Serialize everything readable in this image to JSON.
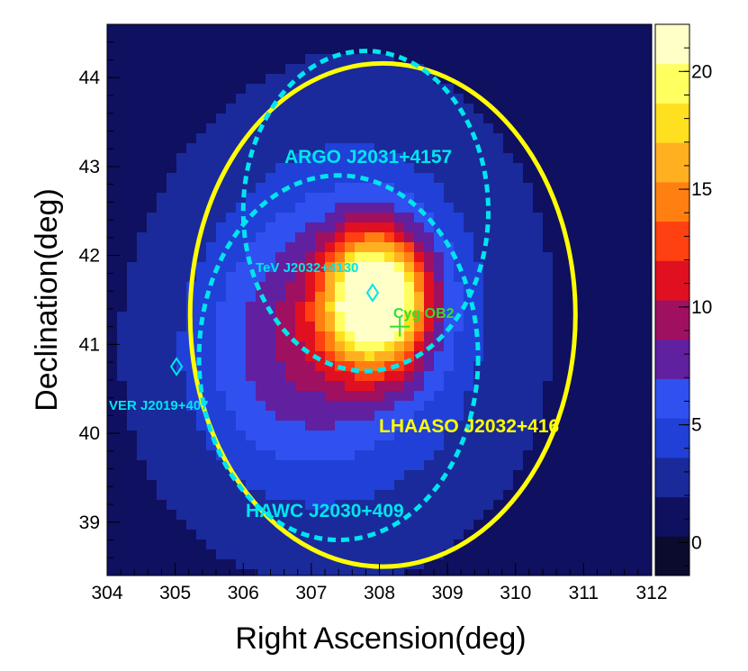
{
  "chart_data": {
    "type": "heatmap",
    "title": "",
    "xlabel": "Right Ascension(deg)",
    "ylabel": "Declination(deg)",
    "xlim": [
      304,
      312
    ],
    "ylim": [
      38.4,
      44.6
    ],
    "x_ticks": [
      304,
      305,
      306,
      307,
      308,
      309,
      310,
      311,
      312
    ],
    "y_ticks": [
      39,
      40,
      41,
      42,
      43,
      44
    ],
    "x_reversed": false,
    "colorbar": {
      "range": [
        -1.4,
        22
      ],
      "ticks": [
        0,
        5,
        10,
        15,
        20
      ],
      "palette": [
        "#0b0b2e",
        "#101060",
        "#1a2a9a",
        "#2040d8",
        "#3050f0",
        "#6020a0",
        "#a01060",
        "#e01020",
        "#ff4010",
        "#ff8010",
        "#ffb020",
        "#ffe020",
        "#ffff60",
        "#ffffc8"
      ]
    },
    "background_level": 1.5,
    "sources_emission": [
      {
        "ra": 307.95,
        "dec": 41.5,
        "amplitude": 20.5,
        "sigma": 0.5
      },
      {
        "ra": 307.6,
        "dec": 41.3,
        "amplitude": 6.0,
        "sigma": 1.3
      },
      {
        "ra": 306.4,
        "dec": 40.8,
        "amplitude": 3.0,
        "sigma": 1.0
      }
    ],
    "circles": [
      {
        "name": "LHAASO J2032+416",
        "ra": 308.05,
        "dec": 41.33,
        "radius_deg": 2.83,
        "color": "#ffff00",
        "style": "solid"
      },
      {
        "name": "ARGO J2031+4157",
        "ra": 307.8,
        "dec": 42.5,
        "radius_deg": 1.8,
        "color": "#00e5ee",
        "style": "dashed"
      },
      {
        "name": "HAWC J2030+409",
        "ra": 307.4,
        "dec": 40.85,
        "radius_deg": 2.05,
        "color": "#00e5ee",
        "style": "dashed"
      }
    ],
    "markers": [
      {
        "label": "TeV J2032+4130",
        "ra": 307.9,
        "dec": 41.58,
        "symbol": "diamond",
        "color": "#00e5ee"
      },
      {
        "label": "VER J2019+407",
        "ra": 305.02,
        "dec": 40.75,
        "symbol": "diamond",
        "color": "#00e5ee"
      },
      {
        "label": "Cyg OB2",
        "ra": 308.3,
        "dec": 41.2,
        "symbol": "cross",
        "color": "#33dd33"
      }
    ],
    "annotations": [
      {
        "text": "ARGO J2031+4157",
        "color": "#00e5ee"
      },
      {
        "text": "TeV J2032+4130",
        "color": "#00e5ee"
      },
      {
        "text": "Cyg OB2",
        "color": "#33dd33"
      },
      {
        "text": "VER J2019+407",
        "color": "#00e5ee"
      },
      {
        "text": "LHAASO J2032+416",
        "color": "#ffff00"
      },
      {
        "text": "HAWC J2030+409",
        "color": "#00e5ee"
      }
    ]
  }
}
